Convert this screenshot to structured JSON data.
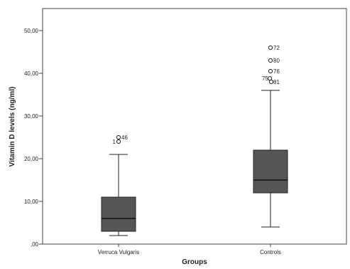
{
  "chart_data": {
    "type": "boxplot",
    "xlabel": "Groups",
    "ylabel": "Vitamin D levels (ng/ml)",
    "ylim": [
      0,
      55
    ],
    "yticks": [
      0,
      10,
      20,
      30,
      40,
      50
    ],
    "ytick_labels": [
      ",00",
      "10,00",
      "20,00",
      "30,00",
      "40,00",
      "50,00"
    ],
    "grid": false,
    "box_color": "#555555",
    "categories": [
      "Verruca Vulgaris",
      "Controls"
    ],
    "boxes": [
      {
        "name": "Verruca Vulgaris",
        "whisker_low": 2,
        "q1": 3,
        "median": 6,
        "q3": 11,
        "whisker_high": 21,
        "outliers": [
          {
            "id": "1",
            "value": 24
          },
          {
            "id": "46",
            "value": 25
          }
        ]
      },
      {
        "name": "Controls",
        "whisker_low": 4,
        "q1": 12,
        "median": 15,
        "q3": 22,
        "whisker_high": 36,
        "outliers": [
          {
            "id": "72",
            "value": 46
          },
          {
            "id": "80",
            "value": 43
          },
          {
            "id": "76",
            "value": 40.5
          },
          {
            "id": "75",
            "value": 38.8
          },
          {
            "id": "81",
            "value": 38
          }
        ]
      }
    ]
  }
}
